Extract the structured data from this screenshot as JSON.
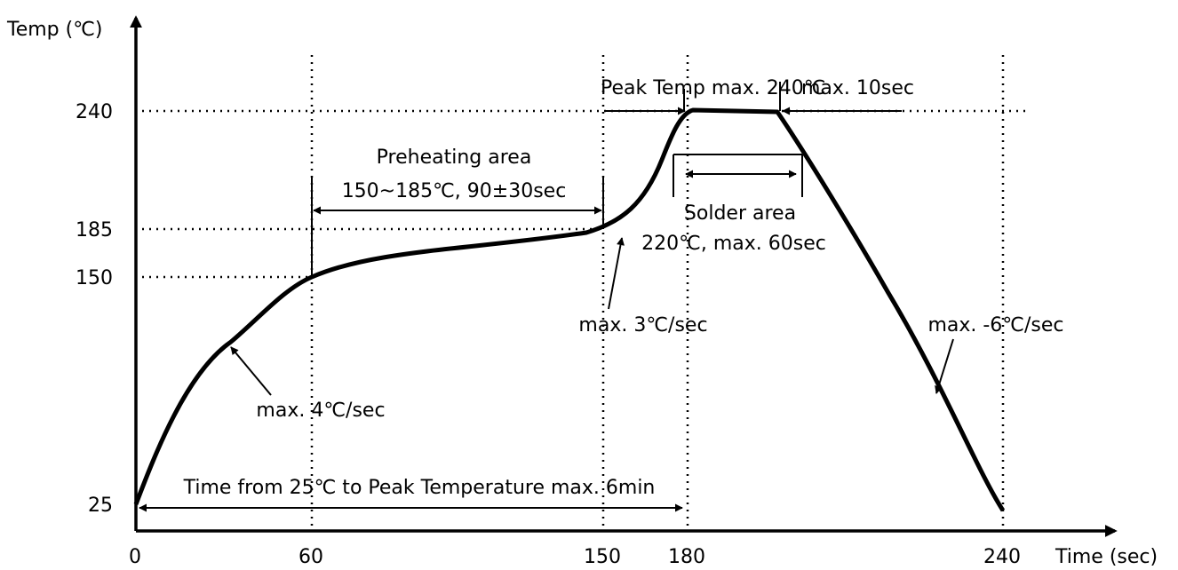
{
  "chart_data": {
    "type": "line",
    "title": "",
    "xlabel": "Time (sec)",
    "ylabel": "Temp (℃)",
    "x_ticks": [
      {
        "value": 0,
        "label": "0"
      },
      {
        "value": 60,
        "label": "60"
      },
      {
        "value": 150,
        "label": "150"
      },
      {
        "value": 180,
        "label": "180"
      },
      {
        "value": 240,
        "label": "240"
      }
    ],
    "y_ticks": [
      {
        "value": 25,
        "label": "25"
      },
      {
        "value": 150,
        "label": "150"
      },
      {
        "value": 185,
        "label": "185"
      },
      {
        "value": 240,
        "label": "240"
      }
    ],
    "xlim": [
      0,
      267
    ],
    "ylim": [
      16,
      280
    ],
    "series": [
      {
        "x": [
          0,
          10,
          20,
          30,
          40,
          50,
          60,
          75,
          90,
          105,
          120,
          135,
          150,
          160,
          170,
          175,
          180,
          182,
          190,
          200,
          205,
          210,
          220,
          230,
          240
        ],
        "y": [
          25,
          65,
          97,
          118,
          133,
          143,
          150,
          159,
          164,
          168,
          172,
          177,
          185,
          195,
          212,
          225,
          237,
          240,
          240,
          240,
          240,
          231,
          164,
          90,
          28
        ]
      }
    ],
    "grid": false,
    "annotations": {
      "peak_temp": "Peak Temp max. 240℃",
      "max_10sec": "max. 10sec",
      "preheat_title": "Preheating area",
      "preheat_detail": "150~185℃, 90±30sec",
      "solder_title": "Solder area",
      "solder_detail": "220℃, max. 60sec",
      "rate_3": "max. 3℃/sec",
      "rate_4": "max. 4℃/sec",
      "rate_minus6": "max. -6℃/sec",
      "time_span": "Time from 25℃ to Peak Temperature max. 6min"
    }
  }
}
